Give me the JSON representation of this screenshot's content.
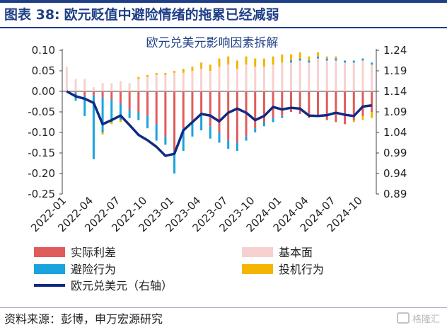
{
  "header": {
    "figure_label": "图表 38:",
    "title": "欧元贬值中避险情绪的拖累已经减弱"
  },
  "footer": {
    "source": "资料来源：彭博，申万宏源研究",
    "watermark": "格隆汇"
  },
  "colors": {
    "frame": "#1f3f87",
    "real_rate_diff": "#e05c5c",
    "basic": "#f7d0d0",
    "risk_aversion": "#1aa3dc",
    "speculative": "#f4b400",
    "eurusd": "#102a83"
  },
  "chart_data": {
    "type": "bar",
    "title": "欧元兑美元影响因素拆解",
    "stacked": true,
    "x_tick_labels": [
      "2022-01",
      "2022-04",
      "2022-07",
      "2022-10",
      "2023-01",
      "2023-04",
      "2023-07",
      "2023-10",
      "2024-01",
      "2024-04",
      "2024-07",
      "2024-10"
    ],
    "x": [
      "2022-01",
      "2022-02",
      "2022-03",
      "2022-04",
      "2022-05",
      "2022-06",
      "2022-07",
      "2022-08",
      "2022-09",
      "2022-10",
      "2022-11",
      "2022-12",
      "2023-01",
      "2023-02",
      "2023-03",
      "2023-04",
      "2023-05",
      "2023-06",
      "2023-07",
      "2023-08",
      "2023-09",
      "2023-10",
      "2023-11",
      "2023-12",
      "2024-01",
      "2024-02",
      "2024-03",
      "2024-04",
      "2024-05",
      "2024-06",
      "2024-07",
      "2024-08",
      "2024-09",
      "2024-10",
      "2024-11"
    ],
    "y_left": {
      "ylim": [
        -0.25,
        0.1
      ],
      "ticks": [
        0.1,
        0.05,
        0.0,
        -0.05,
        -0.1,
        -0.15,
        -0.2,
        -0.25
      ]
    },
    "y_right": {
      "ylim": [
        0.89,
        1.24
      ],
      "ticks": [
        1.24,
        1.19,
        1.14,
        1.09,
        1.04,
        0.99,
        0.94,
        0.89
      ]
    },
    "series": [
      {
        "name": "实际利差",
        "kind": "bar",
        "values": [
          0.0,
          -0.003,
          -0.01,
          -0.01,
          -0.015,
          -0.02,
          -0.03,
          -0.045,
          -0.05,
          -0.06,
          -0.08,
          -0.11,
          -0.145,
          -0.09,
          -0.07,
          -0.06,
          -0.085,
          -0.1,
          -0.12,
          -0.125,
          -0.11,
          -0.09,
          -0.075,
          -0.065,
          -0.06,
          -0.05,
          -0.055,
          -0.065,
          -0.06,
          -0.07,
          -0.075,
          -0.08,
          -0.07,
          -0.06,
          -0.05
        ]
      },
      {
        "name": "基本面",
        "kind": "bar",
        "values": [
          0.06,
          0.03,
          0.03,
          0.01,
          0.02,
          0.02,
          0.025,
          0.02,
          0.03,
          0.035,
          0.04,
          0.04,
          0.045,
          0.045,
          0.05,
          0.055,
          0.05,
          0.06,
          0.065,
          0.055,
          0.065,
          0.06,
          0.06,
          0.065,
          0.07,
          0.07,
          0.075,
          0.07,
          0.08,
          0.075,
          0.075,
          0.07,
          0.07,
          0.075,
          0.065
        ]
      },
      {
        "name": "避险行为",
        "kind": "bar",
        "values": [
          0.0,
          -0.02,
          -0.05,
          -0.155,
          -0.085,
          -0.055,
          -0.04,
          -0.02,
          -0.02,
          -0.03,
          -0.04,
          -0.02,
          -0.055,
          -0.055,
          -0.04,
          -0.035,
          -0.03,
          -0.025,
          -0.02,
          -0.02,
          -0.01,
          -0.01,
          -0.01,
          -0.01,
          -0.005,
          0.005,
          0.005,
          0.005,
          0.005,
          0.005,
          0.005,
          0.005,
          0.005,
          0.005,
          0.005
        ]
      },
      {
        "name": "投机行为",
        "kind": "bar",
        "values": [
          0.0,
          0.0,
          0.0,
          0.0,
          -0.005,
          -0.005,
          -0.005,
          0.0,
          0.005,
          0.005,
          0.005,
          0.005,
          0.005,
          0.01,
          0.01,
          0.015,
          0.015,
          0.02,
          0.02,
          0.02,
          0.02,
          0.02,
          0.02,
          0.02,
          0.02,
          0.015,
          0.015,
          0.01,
          0.01,
          0.005,
          0.005,
          0.0,
          -0.005,
          -0.01,
          -0.015
        ]
      },
      {
        "name": "欧元兑美元（右轴）",
        "kind": "line",
        "axis": "right",
        "values": [
          1.14,
          1.128,
          1.122,
          1.112,
          1.06,
          1.07,
          1.081,
          1.058,
          1.034,
          1.021,
          1.005,
          0.983,
          0.988,
          1.045,
          1.065,
          1.085,
          1.081,
          1.067,
          1.088,
          1.098,
          1.088,
          1.07,
          1.08,
          1.102,
          1.096,
          1.1,
          1.098,
          1.081,
          1.08,
          1.082,
          1.088,
          1.083,
          1.08,
          1.103,
          1.106
        ]
      }
    ],
    "legend_placement": "bottom"
  }
}
